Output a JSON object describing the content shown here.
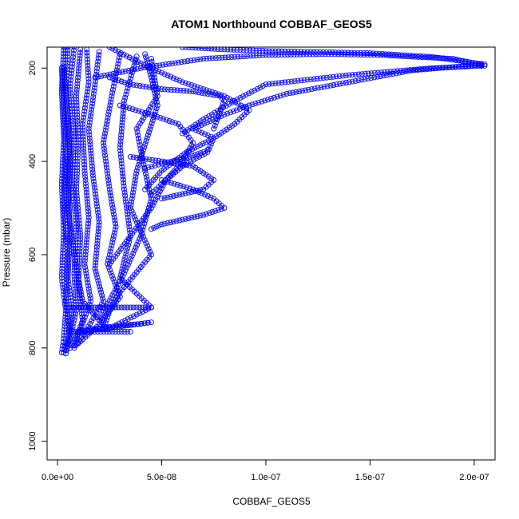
{
  "chart_data": {
    "type": "scatter",
    "title": "ATOM1 Northbound COBBAF_GEOS5",
    "xlabel": "COBBAF_GEOS5",
    "ylabel": "Pressure (mbar)",
    "xlim": [
      -5e-09,
      2.1e-07
    ],
    "ylim": [
      1040,
      155
    ],
    "y_reversed": true,
    "x_ticks": [
      0,
      5e-08,
      1e-07,
      1.5e-07,
      2e-07
    ],
    "x_tick_labels": [
      "0.0e+00",
      "5.0e-08",
      "1.0e-07",
      "1.5e-07",
      "2.0e-07"
    ],
    "y_ticks": [
      200,
      400,
      600,
      800,
      1000
    ],
    "y_tick_labels": [
      "200",
      "400",
      "600",
      "800",
      "1000"
    ],
    "marker": "open-circle",
    "connect_points": true,
    "color": "#0000ff",
    "grid": false,
    "legend": "none",
    "series": [
      {
        "x": [
          3e-09,
          2e-09,
          3e-09,
          2e-09,
          3e-09,
          2e-09,
          4e-09,
          3e-09,
          2e-09
        ],
        "y": [
          155,
          250,
          350,
          450,
          550,
          650,
          720,
          780,
          810
        ]
      },
      {
        "x": [
          5e-09,
          4e-09,
          6e-09,
          5e-09,
          6e-09,
          5e-09,
          7e-09,
          5e-09,
          3e-09
        ],
        "y": [
          155,
          250,
          350,
          450,
          550,
          650,
          720,
          780,
          810
        ]
      },
      {
        "x": [
          8e-09,
          6e-09,
          8e-09,
          7e-09,
          9e-09,
          8e-09,
          9e-09,
          6e-09,
          4e-09
        ],
        "y": [
          155,
          240,
          340,
          440,
          540,
          640,
          720,
          780,
          805
        ]
      },
      {
        "x": [
          1.1e-08,
          9e-09,
          1e-08,
          9e-09,
          1.1e-08,
          1e-08,
          1.2e-08,
          8e-09
        ],
        "y": [
          160,
          260,
          360,
          460,
          560,
          660,
          740,
          795
        ]
      },
      {
        "x": [
          1.4e-08,
          1.5e-08,
          1.2e-08,
          1.3e-08,
          1.5e-08,
          1.3e-08,
          1.6e-08,
          1.1e-08,
          6e-09
        ],
        "y": [
          160,
          230,
          320,
          420,
          520,
          620,
          700,
          760,
          800
        ]
      },
      {
        "x": [
          2e-08,
          1.8e-08,
          1.5e-08,
          1.7e-08,
          2e-08,
          1.8e-08,
          2.2e-08,
          1.4e-08,
          8e-09
        ],
        "y": [
          165,
          235,
          330,
          430,
          530,
          630,
          700,
          760,
          800
        ]
      },
      {
        "x": [
          3e-08,
          2.6e-08,
          2.2e-08,
          2.5e-08,
          2.8e-08,
          2.4e-08,
          3e-08,
          2e-08,
          1e-08
        ],
        "y": [
          170,
          260,
          360,
          460,
          540,
          620,
          690,
          750,
          790
        ]
      },
      {
        "x": [
          3.8e-08,
          3.2e-08,
          3e-08,
          3.2e-08,
          3.5e-08,
          3e-08,
          4.5e-08,
          2.4e-08
        ],
        "y": [
          175,
          270,
          370,
          460,
          560,
          650,
          713,
          760
        ]
      },
      {
        "x": [
          4.5e-08,
          4.8e-08,
          3.8e-08,
          4.1e-08,
          4.5e-08,
          4e-08,
          3.2e-08,
          2e-08
        ],
        "y": [
          180,
          260,
          330,
          400,
          480,
          560,
          640,
          740
        ]
      },
      {
        "x": [
          4.2e-08,
          4.5e-08,
          4.8e-08,
          4.3e-08,
          3.8e-08,
          3.5e-08,
          4.5e-08,
          3e-08,
          2.5e-08,
          2.2e-08
        ],
        "y": [
          170,
          220,
          280,
          350,
          420,
          500,
          600,
          680,
          720,
          760
        ]
      },
      {
        "x": [
          2.5e-08,
          4e-08,
          6e-08,
          8e-08,
          9.2e-08,
          8.5e-08,
          7.5e-08,
          6.2e-08,
          5e-08,
          4.2e-08
        ],
        "y": [
          155,
          190,
          230,
          260,
          290,
          320,
          350,
          380,
          420,
          460
        ]
      },
      {
        "x": [
          6e-08,
          8e-08,
          1e-07,
          1.2e-07,
          1.5e-07,
          1.8e-07,
          2.05e-07,
          1.7e-07,
          1.4e-07,
          1.1e-07,
          9.2e-08,
          8e-08,
          6.5e-08
        ],
        "y": [
          155,
          160,
          163,
          165,
          168,
          176,
          192,
          205,
          230,
          255,
          280,
          300,
          330
        ]
      },
      {
        "x": [
          1.8e-08,
          4e-08,
          7e-08,
          1e-07,
          1.3e-07,
          1.55e-07,
          1.9e-07,
          2.05e-07,
          1.8e-07,
          1.4e-07,
          1e-07,
          8.5e-08,
          7e-08,
          6e-08
        ],
        "y": [
          220,
          200,
          180,
          172,
          170,
          172,
          180,
          195,
          200,
          215,
          235,
          270,
          310,
          340
        ]
      },
      {
        "x": [
          7.2e-08,
          7e-08,
          6.2e-08,
          5e-08,
          4.2e-08
        ],
        "y": [
          375,
          380,
          392,
          405,
          415
        ]
      },
      {
        "x": [
          6.5e-08,
          7.5e-08,
          7.2e-08,
          6e-08,
          5.2e-08,
          4.5e-08
        ],
        "y": [
          330,
          350,
          380,
          410,
          440,
          470
        ]
      },
      {
        "x": [
          5e-08,
          6.5e-08,
          7.5e-08,
          8e-08,
          7e-08,
          6e-08,
          5e-08,
          4.5e-08
        ],
        "y": [
          440,
          460,
          480,
          500,
          515,
          525,
          535,
          545
        ]
      },
      {
        "x": [
          3.5e-08,
          5e-08,
          6.5e-08,
          7.5e-08,
          7e-08,
          6e-08,
          5e-08
        ],
        "y": [
          390,
          400,
          410,
          440,
          460,
          470,
          480
        ]
      },
      {
        "x": [
          2.5e-08,
          3.5e-08,
          5e-08,
          6.5e-08,
          7.8e-08,
          8e-08,
          7.5e-08
        ],
        "y": [
          220,
          235,
          245,
          250,
          260,
          270,
          330
        ]
      },
      {
        "x": [
          3e-08,
          4.5e-08,
          5.8e-08,
          6.5e-08,
          6e-08,
          5.2e-08,
          4.5e-08,
          3.5e-08,
          2.5e-08
        ],
        "y": [
          280,
          300,
          320,
          360,
          400,
          440,
          500,
          560,
          620
        ]
      },
      {
        "x": [
          1.5e-08,
          2e-08,
          2.5e-08,
          3e-08,
          3.5e-08,
          4e-08,
          4.5e-08,
          2e-08,
          1e-08
        ],
        "y": [
          760,
          758,
          755,
          752,
          750,
          748,
          745,
          760,
          765
        ]
      },
      {
        "x": [
          6e-09,
          1.5e-08,
          2.5e-08,
          3.5e-08,
          4.5e-08
        ],
        "y": [
          713,
          713,
          713,
          713,
          713
        ]
      },
      {
        "x": [
          6e-09,
          1.5e-08,
          2.5e-08,
          3.5e-08
        ],
        "y": [
          765,
          765,
          765,
          765
        ]
      },
      {
        "x": [
          3e-09,
          5e-09,
          6e-09,
          5e-09,
          8e-09,
          1.2e-08,
          2.4e-08
        ],
        "y": [
          200,
          300,
          400,
          500,
          600,
          700,
          760
        ]
      },
      {
        "x": [
          2e-09,
          3e-09,
          4e-09,
          3e-09,
          5e-09,
          4e-09,
          6e-09,
          4e-09
        ],
        "y": [
          200,
          300,
          400,
          500,
          600,
          700,
          770,
          812
        ]
      }
    ]
  }
}
